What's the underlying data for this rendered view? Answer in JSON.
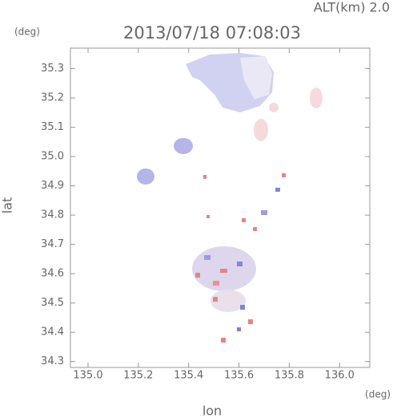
{
  "chart_data": {
    "type": "map",
    "title": "2013/07/18 07:08:03",
    "annotation": "ALT(km) 2.0",
    "y_unit": "(deg)",
    "x_unit": "(deg)",
    "x_label": "lon",
    "y_label": "lat",
    "xlim": [
      134.93,
      136.12
    ],
    "ylim": [
      34.28,
      35.37
    ],
    "xticks": [
      {
        "value": 135.0,
        "label": "135.0"
      },
      135.2,
      135.4,
      135.6,
      135.8,
      {
        "value": 136.0,
        "label": "136.0"
      }
    ],
    "yticks": [
      34.3,
      34.4,
      34.5,
      34.6,
      34.7,
      34.8,
      34.9,
      {
        "value": 35.0,
        "label": "35.0"
      },
      35.1,
      35.2,
      35.3
    ]
  }
}
